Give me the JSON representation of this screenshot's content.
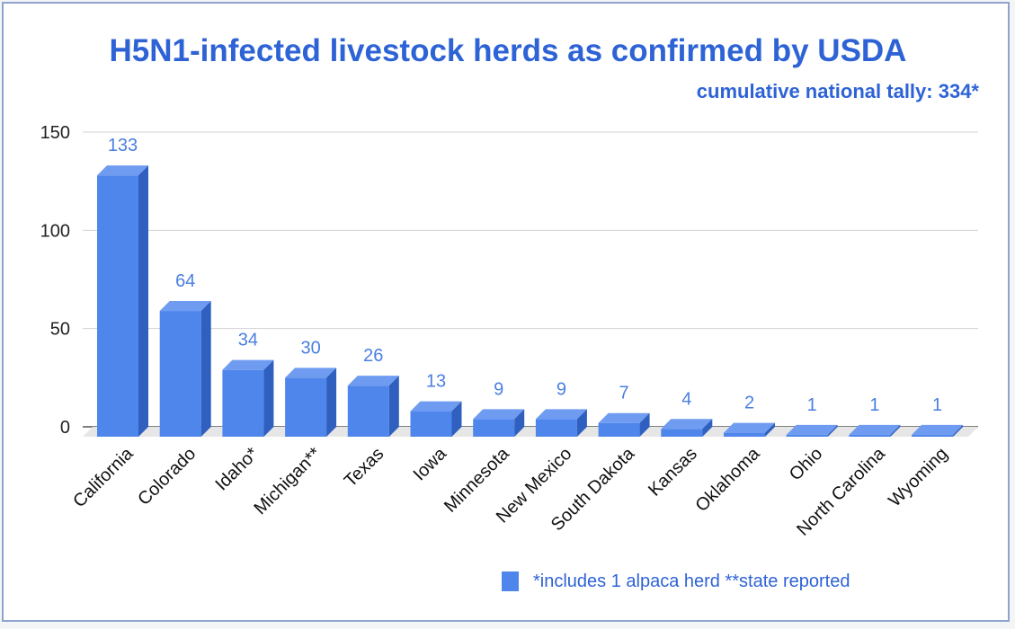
{
  "colors": {
    "accent": "#2e63d6",
    "bar_front": "#4f86ec",
    "bar_top": "#6f9cf1",
    "bar_side": "#2f5fbf",
    "floor": "#e6e6e6",
    "label_blue": "#4a7fe0"
  },
  "chart_data": {
    "type": "bar",
    "title": "H5N1-infected livestock herds as confirmed by USDA",
    "subtitle": "cumulative national tally: 334*",
    "categories": [
      "California",
      "Colorado",
      "Idaho*",
      "Michigan**",
      "Texas",
      "Iowa",
      "Minnesota",
      "New Mexico",
      "South Dakota",
      "Kansas",
      "Oklahoma",
      "Ohio",
      "North Carolina",
      "Wyoming"
    ],
    "series": [
      {
        "name": "*includes 1 alpaca herd **state reported",
        "values": [
          133,
          64,
          34,
          30,
          26,
          13,
          9,
          9,
          7,
          4,
          2,
          1,
          1,
          1
        ]
      }
    ],
    "yticks": [
      0,
      50,
      100,
      150
    ],
    "ylim": [
      0,
      150
    ],
    "grid": true,
    "legend_position": "bottom",
    "style": "3d"
  }
}
